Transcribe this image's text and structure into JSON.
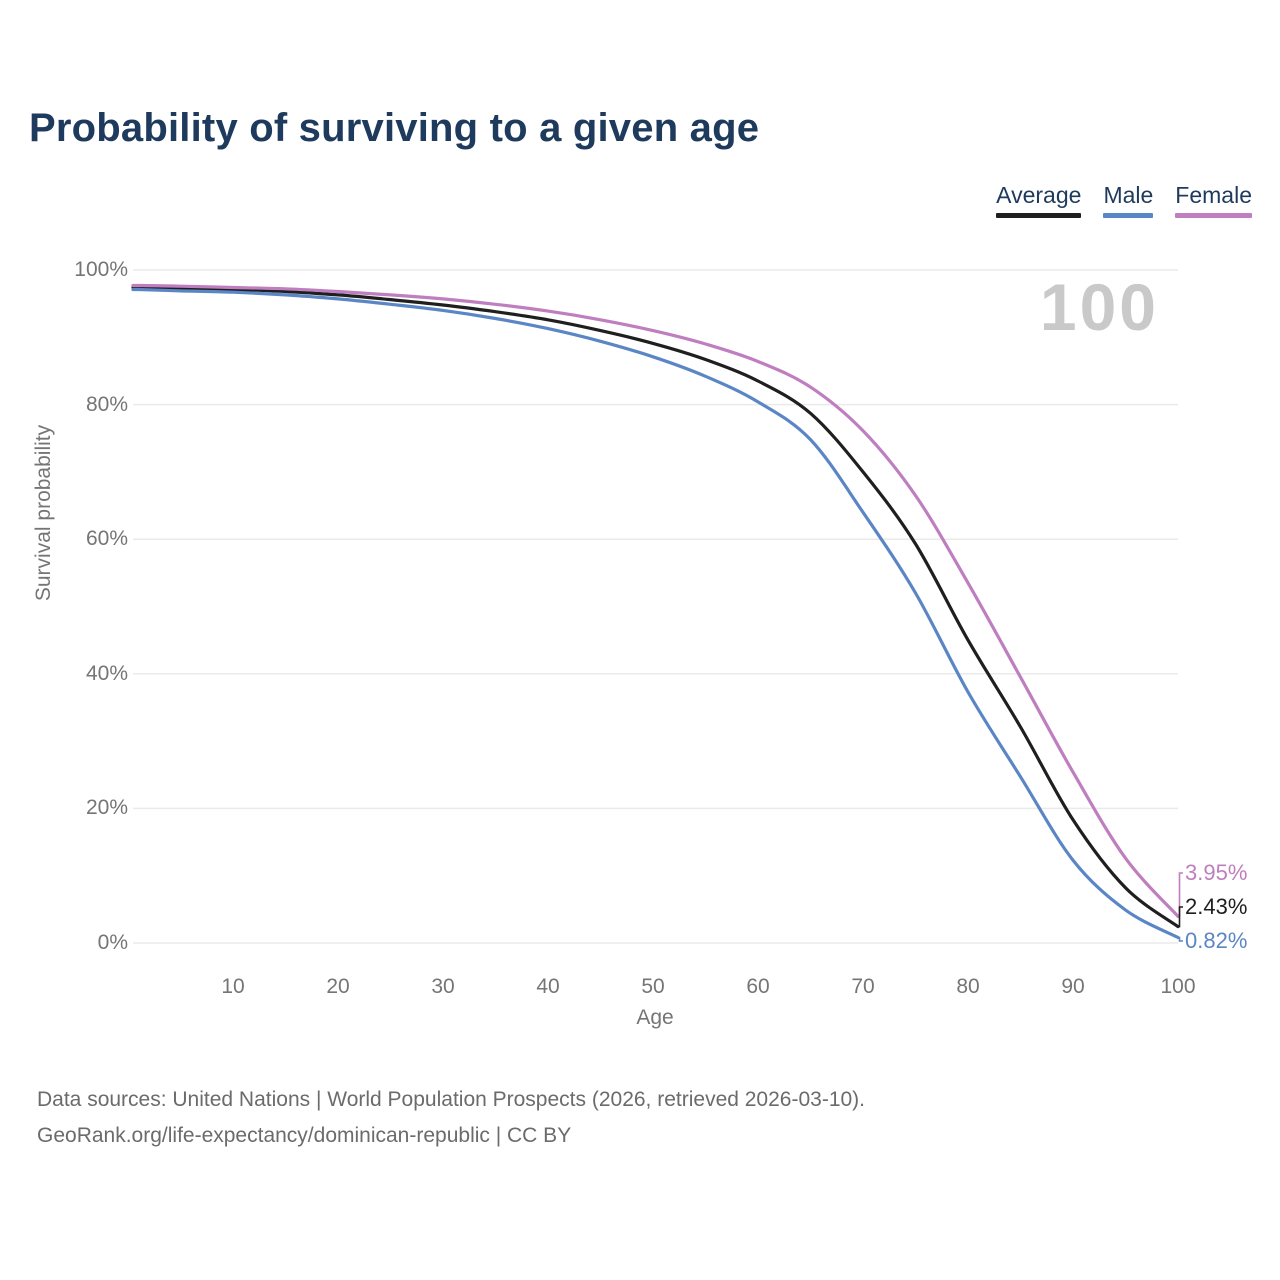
{
  "title": "Probability of surviving to a given age",
  "legend": [
    {
      "label": "Average",
      "color": "#1f1f1f"
    },
    {
      "label": "Male",
      "color": "#5b86c5"
    },
    {
      "label": "Female",
      "color": "#bf7ebf"
    }
  ],
  "watermark": "100",
  "source_line1": "Data sources: United Nations | World Population Prospects (2026, retrieved 2026-03-10).",
  "source_line2": "GeoRank.org/life-expectancy/dominican-republic | CC BY",
  "chart_data": {
    "type": "line",
    "title": "Probability of surviving to a given age",
    "xlabel": "Age",
    "ylabel": "Survival probability",
    "xlim": [
      0,
      100
    ],
    "ylim": [
      0,
      100
    ],
    "grid": "horizontal",
    "legend_position": "top-right",
    "annotation": "100",
    "x_ticks": [
      {
        "label": "10",
        "value": 10
      },
      {
        "label": "20",
        "value": 20
      },
      {
        "label": "30",
        "value": 30
      },
      {
        "label": "40",
        "value": 40
      },
      {
        "label": "50",
        "value": 50
      },
      {
        "label": "60",
        "value": 60
      },
      {
        "label": "70",
        "value": 70
      },
      {
        "label": "80",
        "value": 80
      },
      {
        "label": "90",
        "value": 90
      },
      {
        "label": "100",
        "value": 100
      }
    ],
    "y_ticks": [
      {
        "label": "0%",
        "value": 0
      },
      {
        "label": "20%",
        "value": 20
      },
      {
        "label": "40%",
        "value": 40
      },
      {
        "label": "60%",
        "value": 60
      },
      {
        "label": "80%",
        "value": 80
      },
      {
        "label": "100%",
        "value": 100
      }
    ],
    "ages": [
      1,
      5,
      10,
      15,
      20,
      25,
      30,
      35,
      40,
      45,
      50,
      55,
      60,
      65,
      70,
      75,
      80,
      85,
      90,
      95,
      100
    ],
    "series": [
      {
        "name": "Average",
        "color": "#1f1f1f",
        "end_label": "2.43%",
        "values": [
          97.4,
          97.3,
          97.1,
          96.8,
          96.3,
          95.6,
          94.8,
          93.8,
          92.6,
          91.0,
          89.1,
          86.7,
          83.5,
          78.7,
          70.0,
          59.3,
          45.0,
          32.1,
          18.3,
          8.2,
          2.43
        ]
      },
      {
        "name": "Male",
        "color": "#5b86c5",
        "end_label": "0.82%",
        "values": [
          97.1,
          96.9,
          96.7,
          96.3,
          95.7,
          94.9,
          94.0,
          92.8,
          91.3,
          89.4,
          87.1,
          84.2,
          80.4,
          74.8,
          64.0,
          52.0,
          37.3,
          24.7,
          12.3,
          4.9,
          0.82
        ]
      },
      {
        "name": "Female",
        "color": "#bf7ebf",
        "end_label": "3.95%",
        "values": [
          97.7,
          97.6,
          97.4,
          97.2,
          96.8,
          96.3,
          95.7,
          94.9,
          93.9,
          92.6,
          91.0,
          89.0,
          86.4,
          82.6,
          76.1,
          66.5,
          53.5,
          39.5,
          25.4,
          12.6,
          3.95
        ]
      }
    ]
  }
}
